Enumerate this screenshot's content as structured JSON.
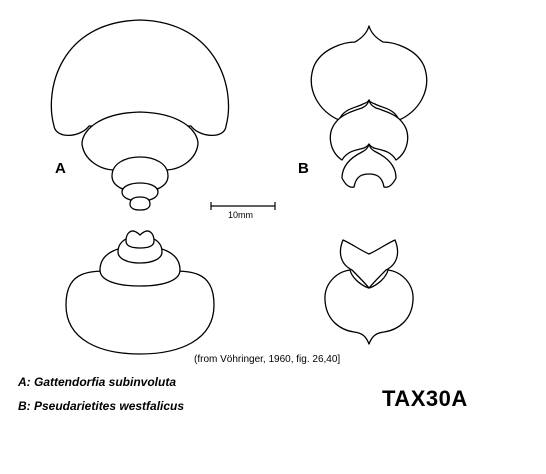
{
  "figure": {
    "label_a": "A",
    "label_b": "B",
    "scale_bar": "10mm",
    "citation": "(from Vöhringer, 1960, fig. 26,40]",
    "legend": {
      "a": "A: Gattendorfia subinvoluta",
      "b": "B: Pseudarietites westfalicus"
    },
    "code": "TAX30A"
  }
}
